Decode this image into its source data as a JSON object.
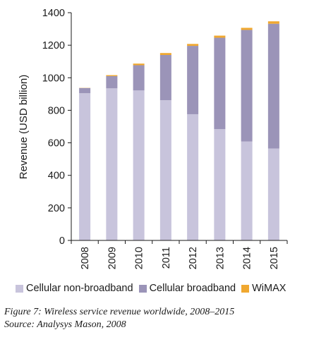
{
  "chart_data": {
    "type": "bar",
    "stacked": true,
    "categories": [
      "2008",
      "2009",
      "2010",
      "2011",
      "2012",
      "2013",
      "2014",
      "2015"
    ],
    "series": [
      {
        "name": "Cellular non-broadband",
        "color": "#c8c4dc",
        "values": [
          905,
          935,
          922,
          862,
          776,
          684,
          608,
          565
        ]
      },
      {
        "name": "Cellular broadband",
        "color": "#9b94b8",
        "values": [
          32,
          75,
          155,
          278,
          420,
          562,
          686,
          767
        ]
      },
      {
        "name": "WiMAX",
        "color": "#f0a830",
        "values": [
          1,
          6,
          10,
          12,
          12,
          13,
          13,
          15
        ]
      }
    ],
    "ylabel": "Revenue (USD billion)",
    "ylim": [
      0,
      1400
    ],
    "yticks": [
      0,
      200,
      400,
      600,
      800,
      1000,
      1200,
      1400
    ],
    "grid": false,
    "legend_position": "bottom"
  },
  "caption": {
    "line1": "Figure 7: Wireless service revenue worldwide, 2008–2015",
    "line2": "Source: Analysys Mason, 2008"
  }
}
